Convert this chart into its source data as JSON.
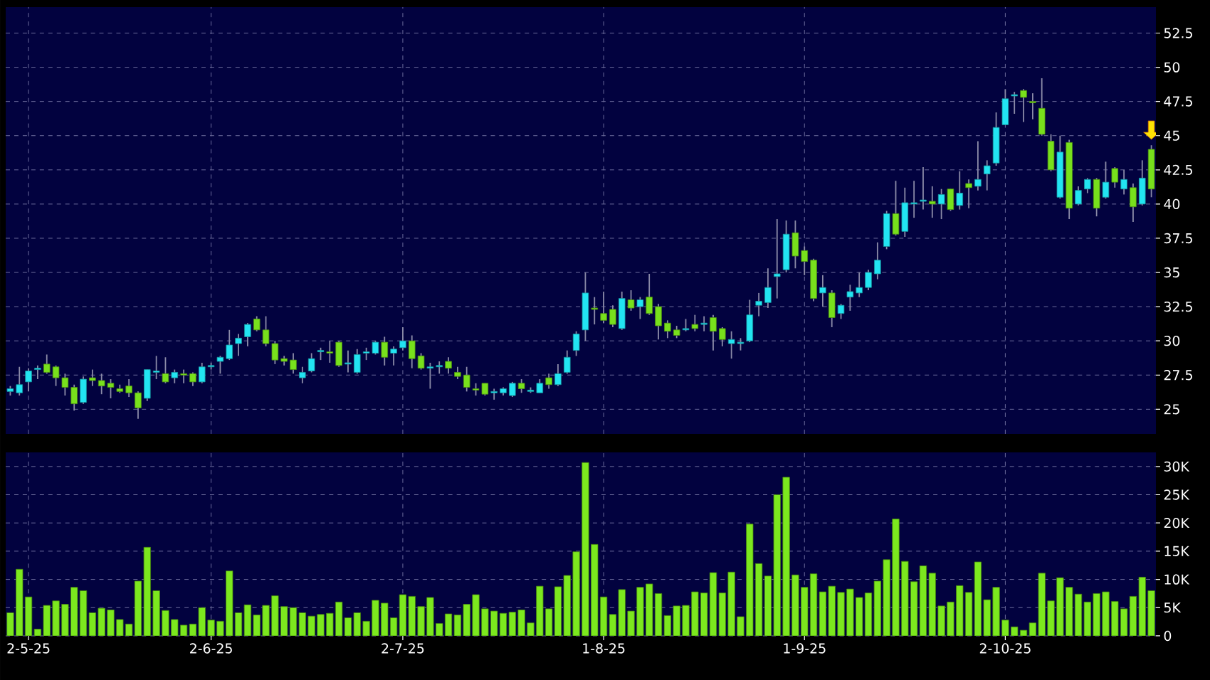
{
  "chart_data": [
    {
      "type": "candlestick",
      "categories": [
        null,
        null,
        null,
        null,
        null,
        null,
        null,
        null,
        null,
        null,
        null,
        null,
        null,
        null,
        null,
        null,
        null,
        null,
        null,
        null,
        null,
        null,
        null,
        null,
        null,
        null,
        null,
        null,
        null,
        null,
        null,
        null,
        null,
        null,
        null,
        null,
        null,
        null,
        null,
        null,
        null,
        null,
        null,
        null,
        null,
        null,
        null,
        null,
        null,
        null,
        null,
        null,
        null,
        null,
        null,
        null,
        null,
        null,
        null,
        null,
        null,
        null,
        null,
        null,
        null,
        null,
        null,
        null,
        null,
        null,
        null,
        null,
        null,
        null,
        null,
        null,
        null,
        null,
        null,
        null,
        null,
        null,
        null,
        null,
        null,
        null,
        null,
        null,
        null,
        null,
        null,
        null,
        null,
        null,
        null,
        null,
        null,
        null,
        null,
        null,
        null,
        null,
        null,
        null,
        null,
        null,
        null,
        null,
        null,
        null,
        null,
        null,
        null,
        null,
        null,
        null,
        null,
        null,
        null,
        null,
        null,
        null,
        null,
        null,
        null,
        null
      ],
      "ohlc": [
        [
          26.3,
          26.7,
          26.0,
          26.5
        ],
        [
          26.2,
          28.1,
          26.0,
          26.8
        ],
        [
          27.0,
          28.0,
          26.3,
          27.8
        ],
        [
          27.9,
          28.2,
          27.2,
          28.0
        ],
        [
          28.3,
          29.0,
          27.6,
          27.7
        ],
        [
          28.1,
          28.2,
          26.7,
          27.3
        ],
        [
          27.3,
          27.6,
          26.0,
          26.6
        ],
        [
          26.6,
          26.8,
          24.9,
          25.4
        ],
        [
          25.5,
          27.4,
          25.4,
          27.2
        ],
        [
          27.3,
          27.9,
          26.7,
          27.1
        ],
        [
          27.1,
          27.6,
          26.1,
          26.7
        ],
        [
          26.9,
          27.2,
          25.8,
          26.6
        ],
        [
          26.5,
          26.8,
          26.2,
          26.3
        ],
        [
          26.7,
          27.2,
          25.9,
          26.2
        ],
        [
          26.2,
          26.3,
          24.3,
          25.1
        ],
        [
          25.8,
          27.9,
          25.6,
          27.9
        ],
        [
          27.7,
          28.9,
          27.2,
          27.8
        ],
        [
          27.6,
          28.8,
          26.9,
          27.0
        ],
        [
          27.3,
          27.9,
          26.9,
          27.7
        ],
        [
          27.6,
          27.9,
          26.9,
          27.5
        ],
        [
          27.6,
          27.7,
          26.7,
          27.0
        ],
        [
          27.0,
          28.4,
          26.9,
          28.1
        ],
        [
          28.1,
          28.4,
          27.9,
          28.2
        ],
        [
          28.5,
          28.9,
          27.6,
          28.8
        ],
        [
          28.7,
          30.8,
          28.6,
          29.7
        ],
        [
          29.8,
          30.5,
          28.9,
          30.2
        ],
        [
          30.3,
          31.3,
          29.6,
          31.2
        ],
        [
          31.6,
          31.8,
          30.7,
          30.8
        ],
        [
          30.8,
          31.8,
          29.6,
          29.8
        ],
        [
          29.8,
          30.0,
          28.3,
          28.6
        ],
        [
          28.7,
          28.9,
          28.2,
          28.5
        ],
        [
          28.6,
          29.1,
          27.6,
          27.9
        ],
        [
          27.3,
          28.1,
          26.9,
          27.7
        ],
        [
          27.8,
          29.1,
          27.7,
          28.7
        ],
        [
          29.2,
          29.5,
          28.6,
          29.3
        ],
        [
          29.2,
          30.0,
          28.4,
          29.1
        ],
        [
          29.9,
          30.0,
          28.1,
          28.2
        ],
        [
          28.3,
          29.3,
          27.7,
          28.4
        ],
        [
          27.7,
          29.4,
          27.6,
          29.0
        ],
        [
          29.1,
          29.5,
          28.6,
          29.2
        ],
        [
          29.1,
          30.0,
          29.0,
          29.9
        ],
        [
          29.9,
          30.3,
          28.2,
          28.8
        ],
        [
          29.1,
          29.6,
          28.2,
          29.4
        ],
        [
          29.5,
          31.0,
          29.3,
          30.0
        ],
        [
          30.0,
          30.4,
          28.0,
          28.7
        ],
        [
          28.9,
          29.1,
          27.9,
          28.0
        ],
        [
          28.0,
          28.4,
          26.5,
          28.1
        ],
        [
          28.1,
          28.5,
          27.6,
          28.2
        ],
        [
          28.5,
          28.8,
          27.6,
          28.0
        ],
        [
          27.7,
          28.1,
          27.2,
          27.4
        ],
        [
          27.5,
          28.1,
          26.3,
          26.6
        ],
        [
          26.5,
          26.9,
          26.0,
          26.4
        ],
        [
          26.9,
          26.9,
          26.0,
          26.1
        ],
        [
          26.2,
          26.5,
          25.7,
          26.3
        ],
        [
          26.2,
          26.6,
          26.0,
          26.5
        ],
        [
          26.0,
          27.0,
          25.9,
          26.9
        ],
        [
          26.9,
          27.2,
          26.2,
          26.5
        ],
        [
          26.3,
          26.6,
          26.2,
          26.4
        ],
        [
          26.2,
          27.2,
          26.2,
          26.9
        ],
        [
          27.3,
          27.6,
          26.5,
          26.8
        ],
        [
          26.8,
          28.3,
          26.7,
          27.6
        ],
        [
          27.7,
          29.3,
          27.6,
          28.8
        ],
        [
          29.3,
          30.7,
          28.9,
          30.5
        ],
        [
          30.8,
          35.0,
          30.0,
          33.5
        ],
        [
          32.4,
          33.2,
          31.2,
          32.3
        ],
        [
          32.0,
          33.6,
          31.3,
          31.5
        ],
        [
          32.3,
          32.6,
          31.0,
          31.2
        ],
        [
          30.9,
          33.6,
          30.8,
          33.1
        ],
        [
          33.0,
          33.7,
          32.2,
          32.4
        ],
        [
          32.5,
          33.2,
          31.6,
          33.0
        ],
        [
          33.2,
          34.9,
          31.9,
          32.0
        ],
        [
          32.5,
          32.7,
          30.1,
          31.1
        ],
        [
          31.3,
          31.5,
          30.2,
          30.7
        ],
        [
          30.8,
          31.1,
          30.2,
          30.4
        ],
        [
          30.8,
          31.6,
          30.7,
          30.9
        ],
        [
          31.2,
          31.9,
          30.7,
          30.9
        ],
        [
          31.2,
          31.8,
          30.7,
          31.3
        ],
        [
          31.7,
          31.9,
          29.3,
          30.7
        ],
        [
          30.9,
          31.0,
          29.6,
          30.1
        ],
        [
          29.8,
          30.7,
          28.7,
          30.1
        ],
        [
          29.8,
          30.2,
          29.3,
          29.9
        ],
        [
          30.0,
          33.0,
          29.9,
          31.9
        ],
        [
          32.6,
          33.5,
          31.8,
          32.9
        ],
        [
          32.8,
          35.3,
          32.4,
          33.9
        ],
        [
          34.7,
          38.9,
          33.1,
          34.9
        ],
        [
          35.2,
          38.8,
          35.0,
          37.8
        ],
        [
          37.9,
          38.8,
          35.3,
          36.2
        ],
        [
          36.6,
          36.9,
          34.8,
          35.8
        ],
        [
          35.9,
          36.0,
          32.9,
          33.1
        ],
        [
          33.5,
          34.8,
          32.5,
          33.9
        ],
        [
          33.5,
          33.7,
          31.0,
          31.7
        ],
        [
          32.0,
          32.7,
          31.6,
          32.6
        ],
        [
          33.2,
          34.1,
          32.2,
          33.6
        ],
        [
          33.5,
          35.0,
          33.2,
          33.9
        ],
        [
          33.9,
          35.2,
          33.7,
          35.0
        ],
        [
          34.9,
          37.2,
          34.5,
          35.9
        ],
        [
          36.9,
          39.5,
          36.7,
          39.3
        ],
        [
          39.3,
          41.7,
          37.7,
          37.8
        ],
        [
          38.0,
          41.2,
          37.6,
          40.1
        ],
        [
          40.0,
          41.7,
          39.0,
          40.1
        ],
        [
          40.2,
          42.7,
          39.6,
          40.3
        ],
        [
          40.2,
          41.3,
          39.0,
          40.0
        ],
        [
          40.0,
          41.1,
          38.9,
          40.7
        ],
        [
          41.1,
          41.1,
          39.5,
          39.6
        ],
        [
          39.9,
          42.4,
          39.6,
          40.8
        ],
        [
          41.5,
          41.8,
          39.7,
          41.2
        ],
        [
          41.3,
          44.6,
          41.0,
          41.8
        ],
        [
          42.2,
          43.2,
          41.0,
          42.8
        ],
        [
          43.0,
          46.7,
          42.8,
          45.6
        ],
        [
          45.8,
          48.4,
          45.8,
          47.7
        ],
        [
          47.9,
          48.2,
          46.6,
          48.0
        ],
        [
          48.3,
          48.4,
          46.0,
          47.8
        ],
        [
          47.5,
          48.1,
          46.2,
          47.4
        ],
        [
          47.0,
          49.2,
          45.0,
          45.1
        ],
        [
          44.6,
          45.1,
          42.4,
          42.5
        ],
        [
          40.5,
          45.0,
          40.4,
          43.8
        ],
        [
          44.5,
          44.7,
          38.9,
          39.7
        ],
        [
          40.0,
          41.3,
          39.9,
          41.0
        ],
        [
          41.1,
          41.9,
          40.8,
          41.8
        ],
        [
          41.8,
          41.9,
          39.1,
          39.7
        ],
        [
          40.5,
          43.1,
          40.4,
          41.6
        ],
        [
          42.6,
          42.7,
          41.2,
          41.6
        ],
        [
          41.1,
          42.5,
          40.7,
          41.8
        ],
        [
          41.2,
          41.5,
          38.7,
          39.8
        ],
        [
          40.0,
          43.2,
          39.9,
          41.9
        ],
        [
          44.0,
          44.3,
          40.5,
          41.1
        ]
      ],
      "colors": [
        "#22e4f2",
        "#22e4f2",
        "#22e4f2",
        "#22e4f2",
        "#78e01c",
        "#78e01c",
        "#78e01c",
        "#78e01c",
        "#22e4f2",
        "#78e01c",
        "#78e01c",
        "#78e01c",
        "#78e01c",
        "#78e01c",
        "#78e01c",
        "#22e4f2",
        "#22e4f2",
        "#78e01c",
        "#22e4f2",
        "#78e01c",
        "#78e01c",
        "#22e4f2",
        "#22e4f2",
        "#22e4f2",
        "#22e4f2",
        "#22e4f2",
        "#22e4f2",
        "#78e01c",
        "#78e01c",
        "#78e01c",
        "#78e01c",
        "#78e01c",
        "#22e4f2",
        "#22e4f2",
        "#22e4f2",
        "#78e01c",
        "#78e01c",
        "#22e4f2",
        "#22e4f2",
        "#22e4f2",
        "#22e4f2",
        "#78e01c",
        "#22e4f2",
        "#22e4f2",
        "#78e01c",
        "#78e01c",
        "#22e4f2",
        "#22e4f2",
        "#78e01c",
        "#78e01c",
        "#78e01c",
        "#78e01c",
        "#78e01c",
        "#22e4f2",
        "#22e4f2",
        "#22e4f2",
        "#78e01c",
        "#22e4f2",
        "#22e4f2",
        "#78e01c",
        "#22e4f2",
        "#22e4f2",
        "#22e4f2",
        "#22e4f2",
        "#78e01c",
        "#78e01c",
        "#78e01c",
        "#22e4f2",
        "#78e01c",
        "#22e4f2",
        "#78e01c",
        "#78e01c",
        "#78e01c",
        "#78e01c",
        "#22e4f2",
        "#78e01c",
        "#22e4f2",
        "#78e01c",
        "#78e01c",
        "#22e4f2",
        "#22e4f2",
        "#22e4f2",
        "#22e4f2",
        "#22e4f2",
        "#22e4f2",
        "#22e4f2",
        "#78e01c",
        "#78e01c",
        "#78e01c",
        "#22e4f2",
        "#78e01c",
        "#22e4f2",
        "#22e4f2",
        "#22e4f2",
        "#22e4f2",
        "#22e4f2",
        "#22e4f2",
        "#78e01c",
        "#22e4f2",
        "#22e4f2",
        "#22e4f2",
        "#78e01c",
        "#22e4f2",
        "#78e01c",
        "#22e4f2",
        "#78e01c",
        "#22e4f2",
        "#22e4f2",
        "#22e4f2",
        "#22e4f2",
        "#22e4f2",
        "#78e01c",
        "#78e01c",
        "#78e01c",
        "#78e01c",
        "#22e4f2",
        "#78e01c",
        "#22e4f2",
        "#22e4f2",
        "#78e01c",
        "#22e4f2",
        "#78e01c",
        "#22e4f2",
        "#78e01c",
        "#22e4f2",
        "#78e01c"
      ],
      "ylim": [
        23.2,
        54.4
      ],
      "yticks": [
        25,
        27.5,
        30,
        32.5,
        35,
        37.5,
        40,
        42.5,
        45,
        47.5,
        50,
        52.5
      ],
      "grid": true,
      "tick_labels": "y"
    },
    {
      "type": "bar",
      "categories": [
        null,
        null,
        "2-5-25",
        null,
        null,
        null,
        null,
        null,
        null,
        null,
        null,
        null,
        null,
        null,
        null,
        null,
        null,
        null,
        null,
        null,
        null,
        null,
        "2-6-25",
        null,
        null,
        null,
        null,
        null,
        null,
        null,
        null,
        null,
        null,
        null,
        null,
        null,
        null,
        null,
        null,
        null,
        null,
        null,
        null,
        "2-7-25",
        null,
        null,
        null,
        null,
        null,
        null,
        null,
        null,
        null,
        null,
        null,
        null,
        null,
        null,
        null,
        null,
        null,
        null,
        null,
        null,
        null,
        "1-8-25",
        null,
        null,
        null,
        null,
        null,
        null,
        null,
        null,
        null,
        null,
        null,
        null,
        null,
        null,
        null,
        null,
        null,
        null,
        null,
        null,
        null,
        "1-9-25",
        null,
        null,
        null,
        null,
        null,
        null,
        null,
        null,
        null,
        null,
        null,
        null,
        null,
        null,
        null,
        null,
        null,
        null,
        null,
        null,
        null,
        "2-10-25",
        null,
        null,
        null,
        null,
        null,
        null,
        null,
        null,
        null,
        null,
        null,
        null,
        null,
        null,
        null,
        null
      ],
      "values": [
        4100,
        11800,
        6900,
        1200,
        5400,
        6200,
        5600,
        8600,
        8000,
        4100,
        4900,
        4600,
        2900,
        2100,
        9700,
        15700,
        8000,
        4500,
        2900,
        1900,
        2100,
        5000,
        2800,
        2600,
        11500,
        4100,
        5500,
        3700,
        5400,
        7100,
        5200,
        5000,
        4100,
        3500,
        3800,
        4000,
        6000,
        3200,
        4100,
        2600,
        6300,
        5800,
        3200,
        7300,
        7000,
        5200,
        6800,
        2200,
        3900,
        3700,
        5600,
        7300,
        4800,
        4400,
        4000,
        4200,
        4600,
        2300,
        8800,
        4800,
        8700,
        10700,
        14900,
        30700,
        16200,
        6900,
        3800,
        8200,
        4400,
        8600,
        9200,
        7500,
        3600,
        5300,
        5400,
        7800,
        7600,
        11200,
        7600,
        11300,
        3400,
        19800,
        12800,
        10600,
        25000,
        28100,
        10800,
        8600,
        11000,
        7800,
        8800,
        7700,
        8300,
        6800,
        7600,
        9700,
        13500,
        20700,
        13200,
        9600,
        12400,
        11100,
        5300,
        6000,
        8900,
        7700,
        13100,
        6400,
        8600,
        2800,
        1600,
        1000,
        2300,
        11100,
        6200,
        10300,
        8600,
        7400,
        6000,
        7500,
        7800,
        6100,
        4800,
        7000,
        10400,
        8000
      ],
      "color": "#7ce81e",
      "ylim": [
        0,
        32500
      ],
      "yticks": [
        0,
        {
          "value": 5000,
          "label": "5K"
        },
        {
          "value": 10000,
          "label": "10K"
        },
        {
          "value": 15000,
          "label": "15K"
        },
        {
          "value": 20000,
          "label": "20K"
        },
        {
          "value": 25000,
          "label": "25K"
        },
        {
          "value": 30000,
          "label": "30K"
        }
      ],
      "grid": true
    }
  ]
}
